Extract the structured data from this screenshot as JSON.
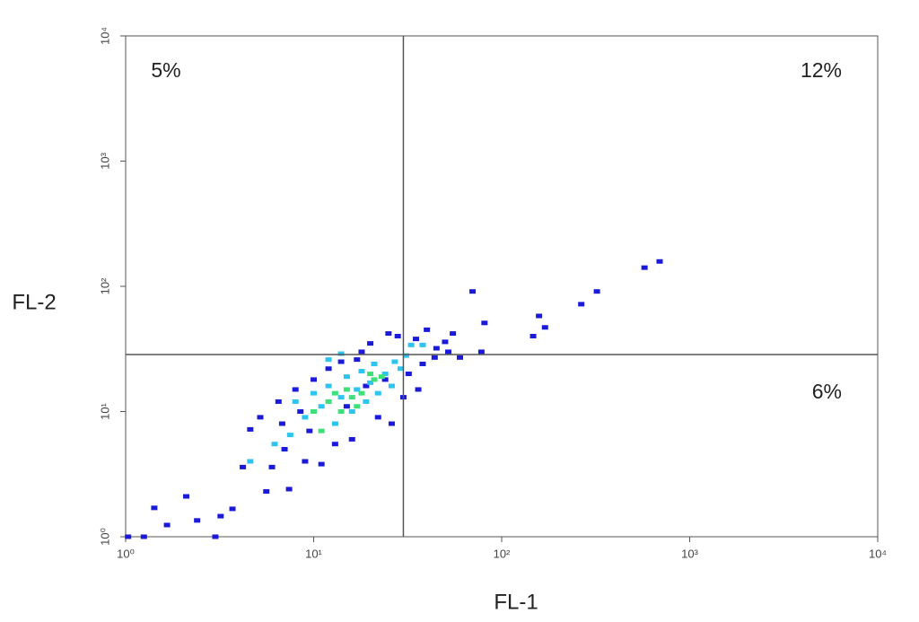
{
  "chart_data": {
    "type": "scatter",
    "x_label": "FL-1",
    "y_label": "FL-2",
    "log_x": true,
    "log_y": true,
    "xlim": [
      1,
      10000
    ],
    "ylim": [
      1,
      10000
    ],
    "xticks": [
      {
        "value": 1,
        "label": "10⁰"
      },
      {
        "value": 10,
        "label": "10¹"
      },
      {
        "value": 100,
        "label": "10²"
      },
      {
        "value": 1000,
        "label": "10³"
      },
      {
        "value": 10000,
        "label": "10⁴"
      }
    ],
    "yticks": [
      {
        "value": 1,
        "label": "10⁰"
      },
      {
        "value": 10,
        "label": "10¹"
      },
      {
        "value": 100,
        "label": "10²"
      },
      {
        "value": 1000,
        "label": "10³"
      },
      {
        "value": 10000,
        "label": "10⁴"
      }
    ],
    "gate_x": 30,
    "gate_y": 28.5,
    "annotations": [
      {
        "text": "5%",
        "quadrant": "upper-left"
      },
      {
        "text": "12%",
        "quadrant": "upper-right"
      },
      {
        "text": "6%",
        "quadrant": "lower-right"
      }
    ],
    "series": [
      {
        "color": "#1a1ad8",
        "x": [
          692,
          575,
          321,
          265,
          158,
          170,
          147,
          70,
          81,
          78,
          60,
          1.03,
          1.25,
          1.42,
          1.66,
          2.1,
          2.4,
          3.0,
          3.2,
          3.7,
          4.2,
          5.6,
          6.0,
          7.4,
          4.6,
          5.2,
          6.5,
          7,
          8,
          9,
          10,
          12,
          14,
          16,
          18,
          20,
          22,
          25,
          28,
          32,
          35,
          38,
          40,
          45,
          50,
          55,
          36,
          30,
          26,
          11,
          13,
          9.5,
          15,
          19,
          24,
          17,
          8.5,
          6.8,
          44,
          52
        ],
        "y": [
          158,
          141,
          91,
          72,
          58,
          47,
          40,
          91,
          51,
          30,
          27,
          1,
          1,
          1.7,
          1.24,
          2.1,
          1.35,
          1,
          1.46,
          1.67,
          3.6,
          2.3,
          3.6,
          2.4,
          7.2,
          9,
          12,
          5,
          15,
          4,
          18,
          22,
          25,
          6,
          30,
          35,
          9,
          42,
          40,
          20,
          38,
          24,
          45,
          32,
          36,
          42,
          15,
          13,
          8,
          3.8,
          5.5,
          7,
          11,
          16,
          18,
          26,
          10,
          8,
          27,
          30
        ]
      },
      {
        "color": "#2ec4f0",
        "x": [
          8,
          9,
          10,
          11,
          12,
          13,
          14,
          15,
          16,
          17,
          18,
          19,
          20,
          21,
          22,
          24,
          26,
          27,
          29,
          31,
          33,
          4.6,
          6.2,
          7.5,
          38,
          12,
          14
        ],
        "y": [
          12,
          9,
          14,
          11,
          16,
          8,
          13,
          19,
          10,
          15,
          21,
          12,
          17,
          24,
          14,
          20,
          16,
          25,
          22,
          28,
          34,
          4,
          5.5,
          6.5,
          34,
          26,
          29
        ]
      },
      {
        "color": "#3ee07a",
        "x": [
          10,
          12,
          13,
          14,
          15,
          16,
          17,
          18,
          20,
          21,
          11,
          23
        ],
        "y": [
          10,
          12,
          14,
          10,
          15,
          13,
          11,
          14,
          20,
          18,
          7,
          19
        ]
      }
    ]
  }
}
